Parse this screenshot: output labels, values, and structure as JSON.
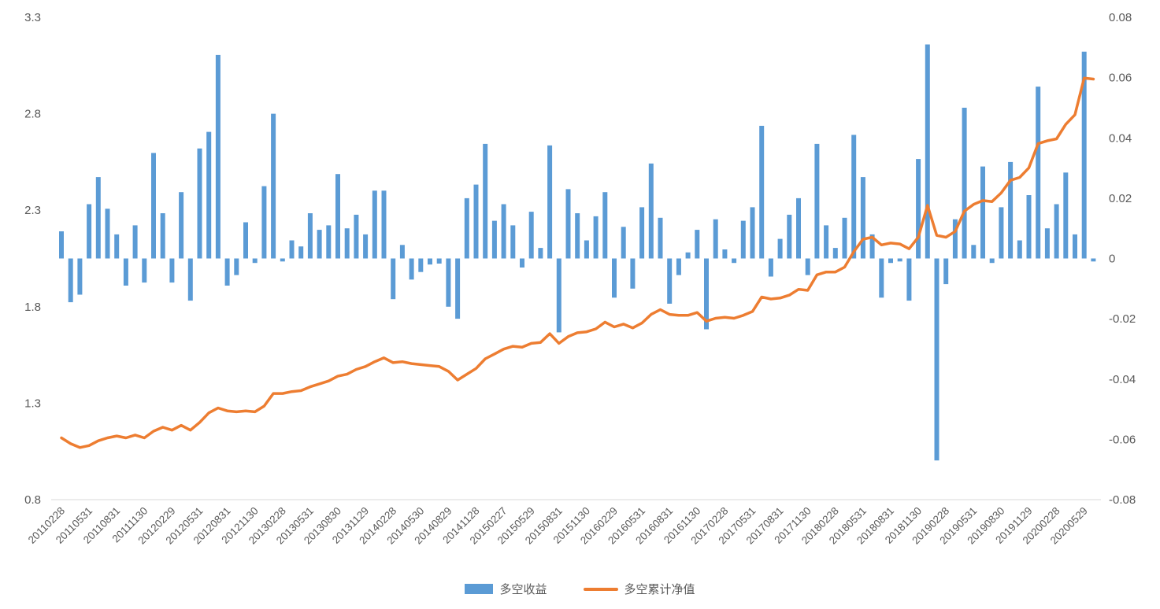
{
  "chart_data": {
    "type": "combo",
    "title": "",
    "n_points": 113,
    "x_start": "2011-02",
    "x_frequency": "monthly",
    "x_tick_step": 3,
    "x_tick_labels": [
      "20110228",
      "20110531",
      "20110831",
      "20111130",
      "20120229",
      "20120531",
      "20120831",
      "20121130",
      "20130228",
      "20130531",
      "20130830",
      "20131129",
      "20140228",
      "20140530",
      "20140829",
      "20141128",
      "20150227",
      "20150529",
      "20150831",
      "20151130",
      "20160229",
      "20160531",
      "20160831",
      "20161130",
      "20170228",
      "20170531",
      "20170831",
      "20171130",
      "20180228",
      "20180531",
      "20180831",
      "20181130",
      "20190228",
      "20190531",
      "20190830",
      "20191129",
      "20200228",
      "20200529"
    ],
    "series": [
      {
        "name": "多空收益",
        "type": "bar",
        "axis": "right",
        "color": "#5B9BD5",
        "values": [
          0.009,
          -0.0145,
          -0.012,
          0.018,
          0.027,
          0.0165,
          0.008,
          -0.009,
          0.011,
          -0.008,
          0.035,
          0.015,
          -0.008,
          0.022,
          -0.014,
          0.0365,
          0.042,
          0.0675,
          -0.009,
          -0.0055,
          0.012,
          -0.0015,
          0.024,
          0.048,
          -0.001,
          0.006,
          0.004,
          0.015,
          0.0095,
          0.011,
          0.028,
          0.01,
          0.0145,
          0.008,
          0.0225,
          0.0225,
          -0.0135,
          0.0045,
          -0.007,
          -0.0045,
          -0.002,
          -0.0017,
          -0.016,
          -0.02,
          0.02,
          0.0245,
          0.038,
          0.0125,
          0.018,
          0.011,
          -0.003,
          0.0155,
          0.0035,
          0.0375,
          -0.0245,
          0.023,
          0.015,
          0.006,
          0.014,
          0.022,
          -0.013,
          0.0105,
          -0.01,
          0.017,
          0.0315,
          0.0135,
          -0.015,
          -0.0055,
          0.002,
          0.0095,
          -0.0235,
          0.013,
          0.003,
          -0.0015,
          0.0125,
          0.017,
          0.044,
          -0.006,
          0.0065,
          0.0145,
          0.02,
          -0.0055,
          0.038,
          0.011,
          0.0035,
          0.0135,
          0.041,
          0.027,
          0.008,
          -0.013,
          -0.0015,
          -0.001,
          -0.014,
          0.033,
          0.071,
          -0.067,
          -0.0085,
          0.013,
          0.05,
          0.0045,
          0.0305,
          -0.0015,
          0.017,
          0.032,
          0.006,
          0.021,
          0.057,
          0.01,
          0.018,
          0.0285,
          0.008,
          0.0686,
          -0.001
        ]
      },
      {
        "name": "多空累计净值",
        "type": "line",
        "axis": "left",
        "color": "#ED7D31",
        "values": [
          1.12,
          1.09,
          1.07,
          1.08,
          1.105,
          1.12,
          1.13,
          1.12,
          1.135,
          1.12,
          1.155,
          1.175,
          1.16,
          1.185,
          1.16,
          1.2,
          1.25,
          1.275,
          1.26,
          1.255,
          1.26,
          1.255,
          1.285,
          1.35,
          1.35,
          1.36,
          1.365,
          1.385,
          1.4,
          1.415,
          1.44,
          1.45,
          1.475,
          1.49,
          1.515,
          1.535,
          1.51,
          1.515,
          1.505,
          1.5,
          1.495,
          1.49,
          1.465,
          1.42,
          1.45,
          1.48,
          1.53,
          1.555,
          1.58,
          1.595,
          1.59,
          1.61,
          1.615,
          1.66,
          1.61,
          1.645,
          1.665,
          1.67,
          1.685,
          1.72,
          1.695,
          1.71,
          1.69,
          1.715,
          1.76,
          1.785,
          1.76,
          1.755,
          1.755,
          1.77,
          1.725,
          1.74,
          1.745,
          1.74,
          1.755,
          1.775,
          1.85,
          1.84,
          1.845,
          1.86,
          1.89,
          1.885,
          1.965,
          1.98,
          1.98,
          2.005,
          2.085,
          2.15,
          2.16,
          2.12,
          2.13,
          2.125,
          2.1,
          2.16,
          2.325,
          2.17,
          2.16,
          2.19,
          2.295,
          2.33,
          2.35,
          2.345,
          2.39,
          2.455,
          2.47,
          2.52,
          2.645,
          2.66,
          2.67,
          2.745,
          2.795,
          2.985,
          2.98
        ]
      }
    ],
    "left_axis": {
      "min": 0.8,
      "max": 3.3,
      "tick_labels": [
        "3.3",
        "2.8",
        "2.3",
        "1.8",
        "1.3",
        "0.8"
      ]
    },
    "right_axis": {
      "min": -0.08,
      "max": 0.08,
      "tick_labels": [
        "0.08",
        "0.06",
        "0.04",
        "0.02",
        "0",
        "-0.02",
        "-0.04",
        "-0.06",
        "-0.08"
      ]
    },
    "grid": "none",
    "legend_position": "bottom"
  },
  "legend": {
    "items": [
      {
        "label": "多空收益",
        "marker": "bar",
        "color": "#5B9BD5"
      },
      {
        "label": "多空累计净值",
        "marker": "line",
        "color": "#ED7D31"
      }
    ]
  },
  "colors": {
    "bar": "#5B9BD5",
    "line": "#ED7D31",
    "axis_text": "#595959",
    "axis_line": "#D9D9D9",
    "background": "#FFFFFF"
  }
}
